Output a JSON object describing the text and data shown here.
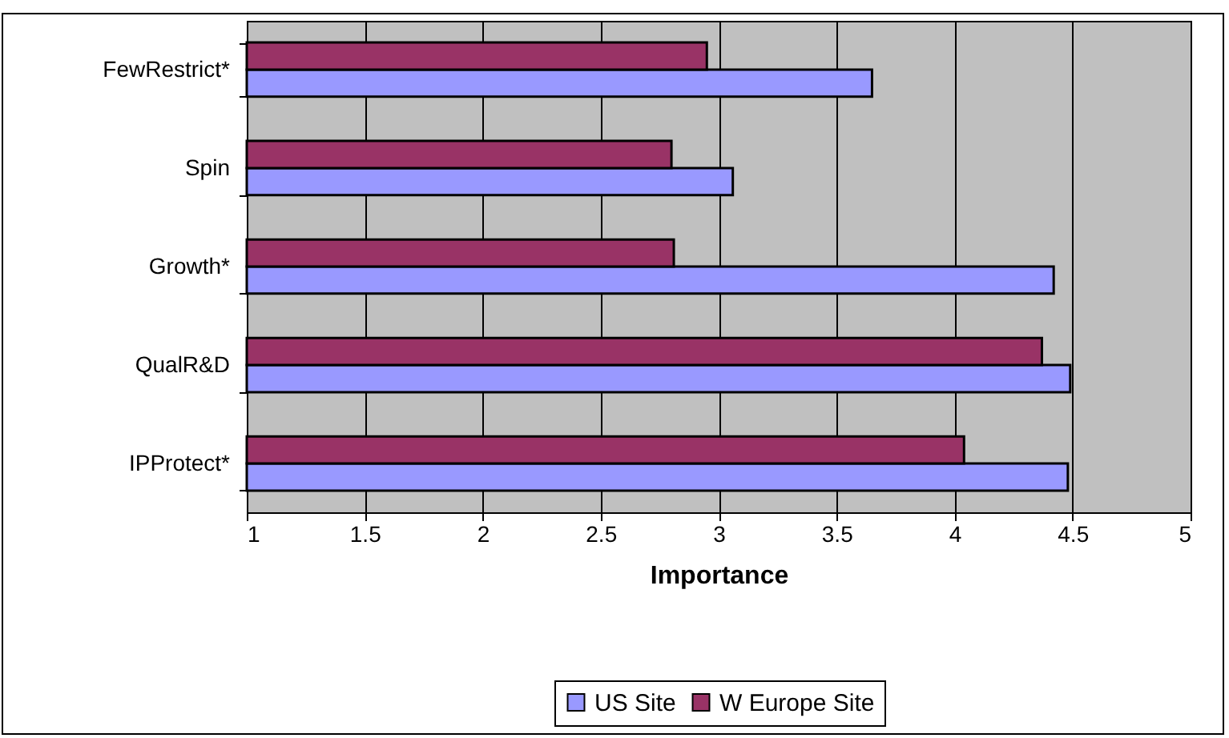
{
  "chart_data": {
    "type": "bar",
    "orientation": "horizontal",
    "xlabel": "Importance",
    "categories": [
      "FewRestrict*",
      "Spin",
      "Growth*",
      "QualR&D",
      "IPProtect*"
    ],
    "series": [
      {
        "name": "US Site",
        "color": "#9999ff",
        "values": [
          3.65,
          3.06,
          4.42,
          4.49,
          4.48
        ]
      },
      {
        "name": "W Europe Site",
        "color": "#993366",
        "values": [
          2.95,
          2.8,
          2.81,
          4.37,
          4.04
        ]
      }
    ],
    "xlim": [
      1,
      5
    ],
    "xticks": [
      1,
      1.5,
      2,
      2.5,
      3,
      3.5,
      4,
      4.5,
      5
    ],
    "grid": "x",
    "legend": "bottom"
  }
}
